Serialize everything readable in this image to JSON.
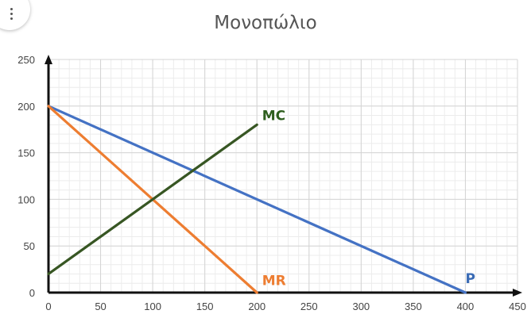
{
  "chart_data": {
    "type": "line",
    "title": "Μονοπώλιο",
    "xlabel": "",
    "ylabel": "",
    "xlim": [
      0,
      450
    ],
    "ylim": [
      0,
      250
    ],
    "x_ticks": [
      0,
      50,
      100,
      150,
      200,
      250,
      300,
      350,
      400,
      450
    ],
    "y_ticks": [
      0,
      50,
      100,
      150,
      200,
      250
    ],
    "grid": true,
    "legend": "none",
    "series": [
      {
        "name": "P",
        "color": "#4472C4",
        "points": [
          [
            0,
            200
          ],
          [
            400,
            0
          ]
        ]
      },
      {
        "name": "MR",
        "color": "#ED7D31",
        "points": [
          [
            0,
            200
          ],
          [
            200,
            0
          ]
        ]
      },
      {
        "name": "MC",
        "color": "#375623",
        "points": [
          [
            0,
            20
          ],
          [
            200,
            180
          ]
        ]
      }
    ],
    "annotations": [
      {
        "text": "MC",
        "color": "#2E5E1E",
        "x": 205,
        "y": 185
      },
      {
        "text": "MR",
        "color": "#ED7D31",
        "x": 205,
        "y": 8
      },
      {
        "text": "P",
        "color": "#3A6BB5",
        "x": 400,
        "y": 10
      }
    ]
  },
  "menu": {
    "icon": "vertical-dots-icon"
  }
}
